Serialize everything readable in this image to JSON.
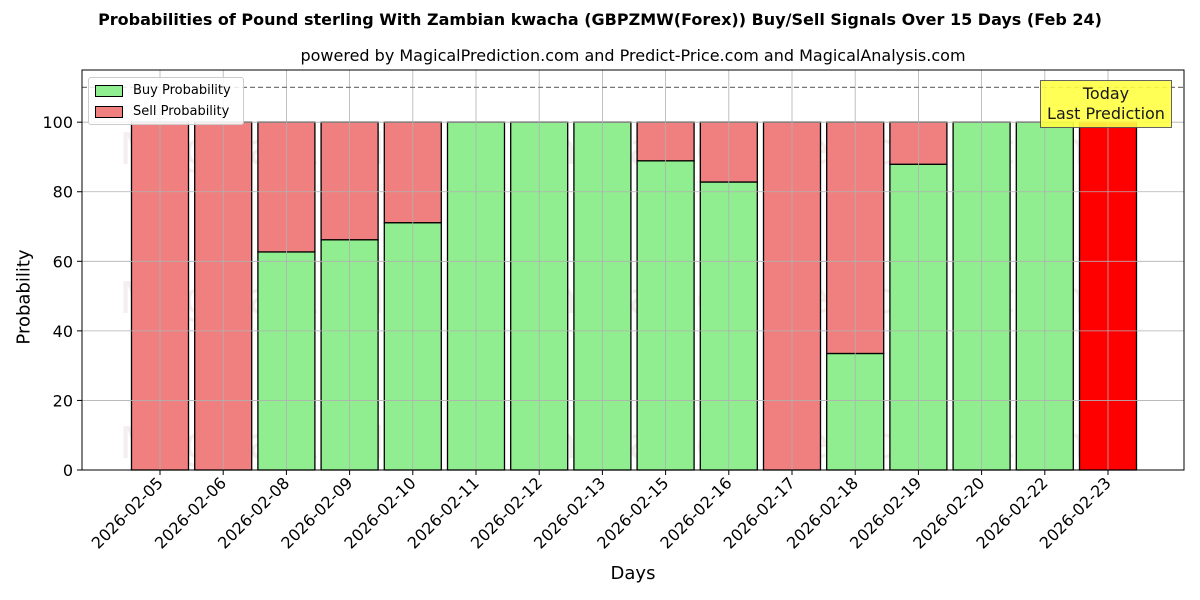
{
  "chart": {
    "title": "Probabilities of Pound sterling With Zambian kwacha (GBPZMW(Forex)) Buy/Sell Signals Over 15 Days (Feb 24)",
    "subtitle": "powered by MagicalPrediction.com and Predict-Price.com and MagicalAnalysis.com",
    "xlabel": "Days",
    "ylabel": "Probability",
    "legend": {
      "buy_label": "Buy Probability",
      "sell_label": "Sell Probability"
    },
    "annotation": {
      "line1": "Today",
      "line2": "Last Prediction"
    },
    "watermarks": [
      "MagicalAnalysis.com",
      "MagicalPrediction.com"
    ],
    "colors": {
      "buy": "#90ee90",
      "sell": "#f08080",
      "today_sell": "#ff0000",
      "annotation_bg": "#ffff44"
    }
  },
  "chart_data": {
    "type": "bar",
    "stacked": true,
    "title": "Probabilities of Pound sterling With Zambian kwacha (GBPZMW(Forex)) Buy/Sell Signals Over 15 Days (Feb 24)",
    "subtitle": "powered by MagicalPrediction.com and Predict-Price.com and MagicalAnalysis.com",
    "xlabel": "Days",
    "ylabel": "Probability",
    "ylim": [
      0,
      115
    ],
    "yticks": [
      0,
      20,
      40,
      60,
      80,
      100
    ],
    "grid": true,
    "legend_position": "upper left",
    "reference_line": {
      "y": 110,
      "style": "dashed"
    },
    "categories": [
      "2026-02-05",
      "2026-02-06",
      "2026-02-08",
      "2026-02-09",
      "2026-02-10",
      "2026-02-11",
      "2026-02-12",
      "2026-02-13",
      "2026-02-15",
      "2026-02-16",
      "2026-02-17",
      "2026-02-18",
      "2026-02-19",
      "2026-02-20",
      "2026-02-22",
      "2026-02-23"
    ],
    "series": [
      {
        "name": "Buy Probability",
        "values": [
          0,
          0,
          62.7,
          66.2,
          71.1,
          100,
          100,
          100,
          88.9,
          82.8,
          0,
          33.5,
          87.9,
          100,
          100,
          0
        ]
      },
      {
        "name": "Sell Probability",
        "values": [
          100,
          100,
          37.3,
          33.8,
          28.9,
          0,
          0,
          0,
          11.1,
          17.2,
          100,
          66.5,
          12.1,
          0,
          0,
          100
        ]
      }
    ],
    "annotations": [
      {
        "text": "Today\nLast Prediction",
        "x": "2026-02-23"
      }
    ]
  }
}
